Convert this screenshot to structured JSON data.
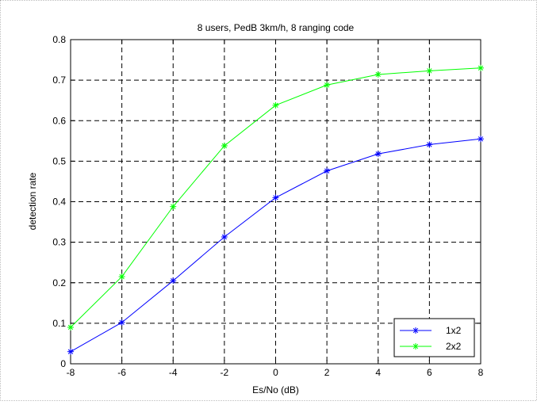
{
  "chart_data": {
    "type": "line",
    "title": "8 users, PedB 3km/h, 8 ranging code",
    "xlabel": "Es/No (dB)",
    "ylabel": "detection rate",
    "xlim": [
      -8,
      8
    ],
    "ylim": [
      0,
      0.8
    ],
    "xticks": [
      -8,
      -6,
      -4,
      -2,
      0,
      2,
      4,
      6,
      8
    ],
    "yticks": [
      0,
      0.1,
      0.2,
      0.3,
      0.4,
      0.5,
      0.6,
      0.7,
      0.8
    ],
    "xtick_labels": [
      "-8",
      "-6",
      "-4",
      "-2",
      "0",
      "2",
      "4",
      "6",
      "8"
    ],
    "ytick_labels": [
      "0",
      "0.1",
      "0.2",
      "0.3",
      "0.4",
      "0.5",
      "0.6",
      "0.7",
      "0.8"
    ],
    "grid": true,
    "legend_position": "bottom-right",
    "x": [
      -8,
      -6,
      -4,
      -2,
      0,
      2,
      4,
      6,
      8
    ],
    "series": [
      {
        "name": "1x2",
        "color": "#0000ff",
        "marker": "asterisk",
        "values": [
          0.03,
          0.102,
          0.205,
          0.313,
          0.41,
          0.476,
          0.518,
          0.541,
          0.555
        ]
      },
      {
        "name": "2x2",
        "color": "#00ff00",
        "marker": "asterisk",
        "values": [
          0.09,
          0.215,
          0.388,
          0.538,
          0.638,
          0.688,
          0.714,
          0.723,
          0.73
        ]
      }
    ]
  }
}
